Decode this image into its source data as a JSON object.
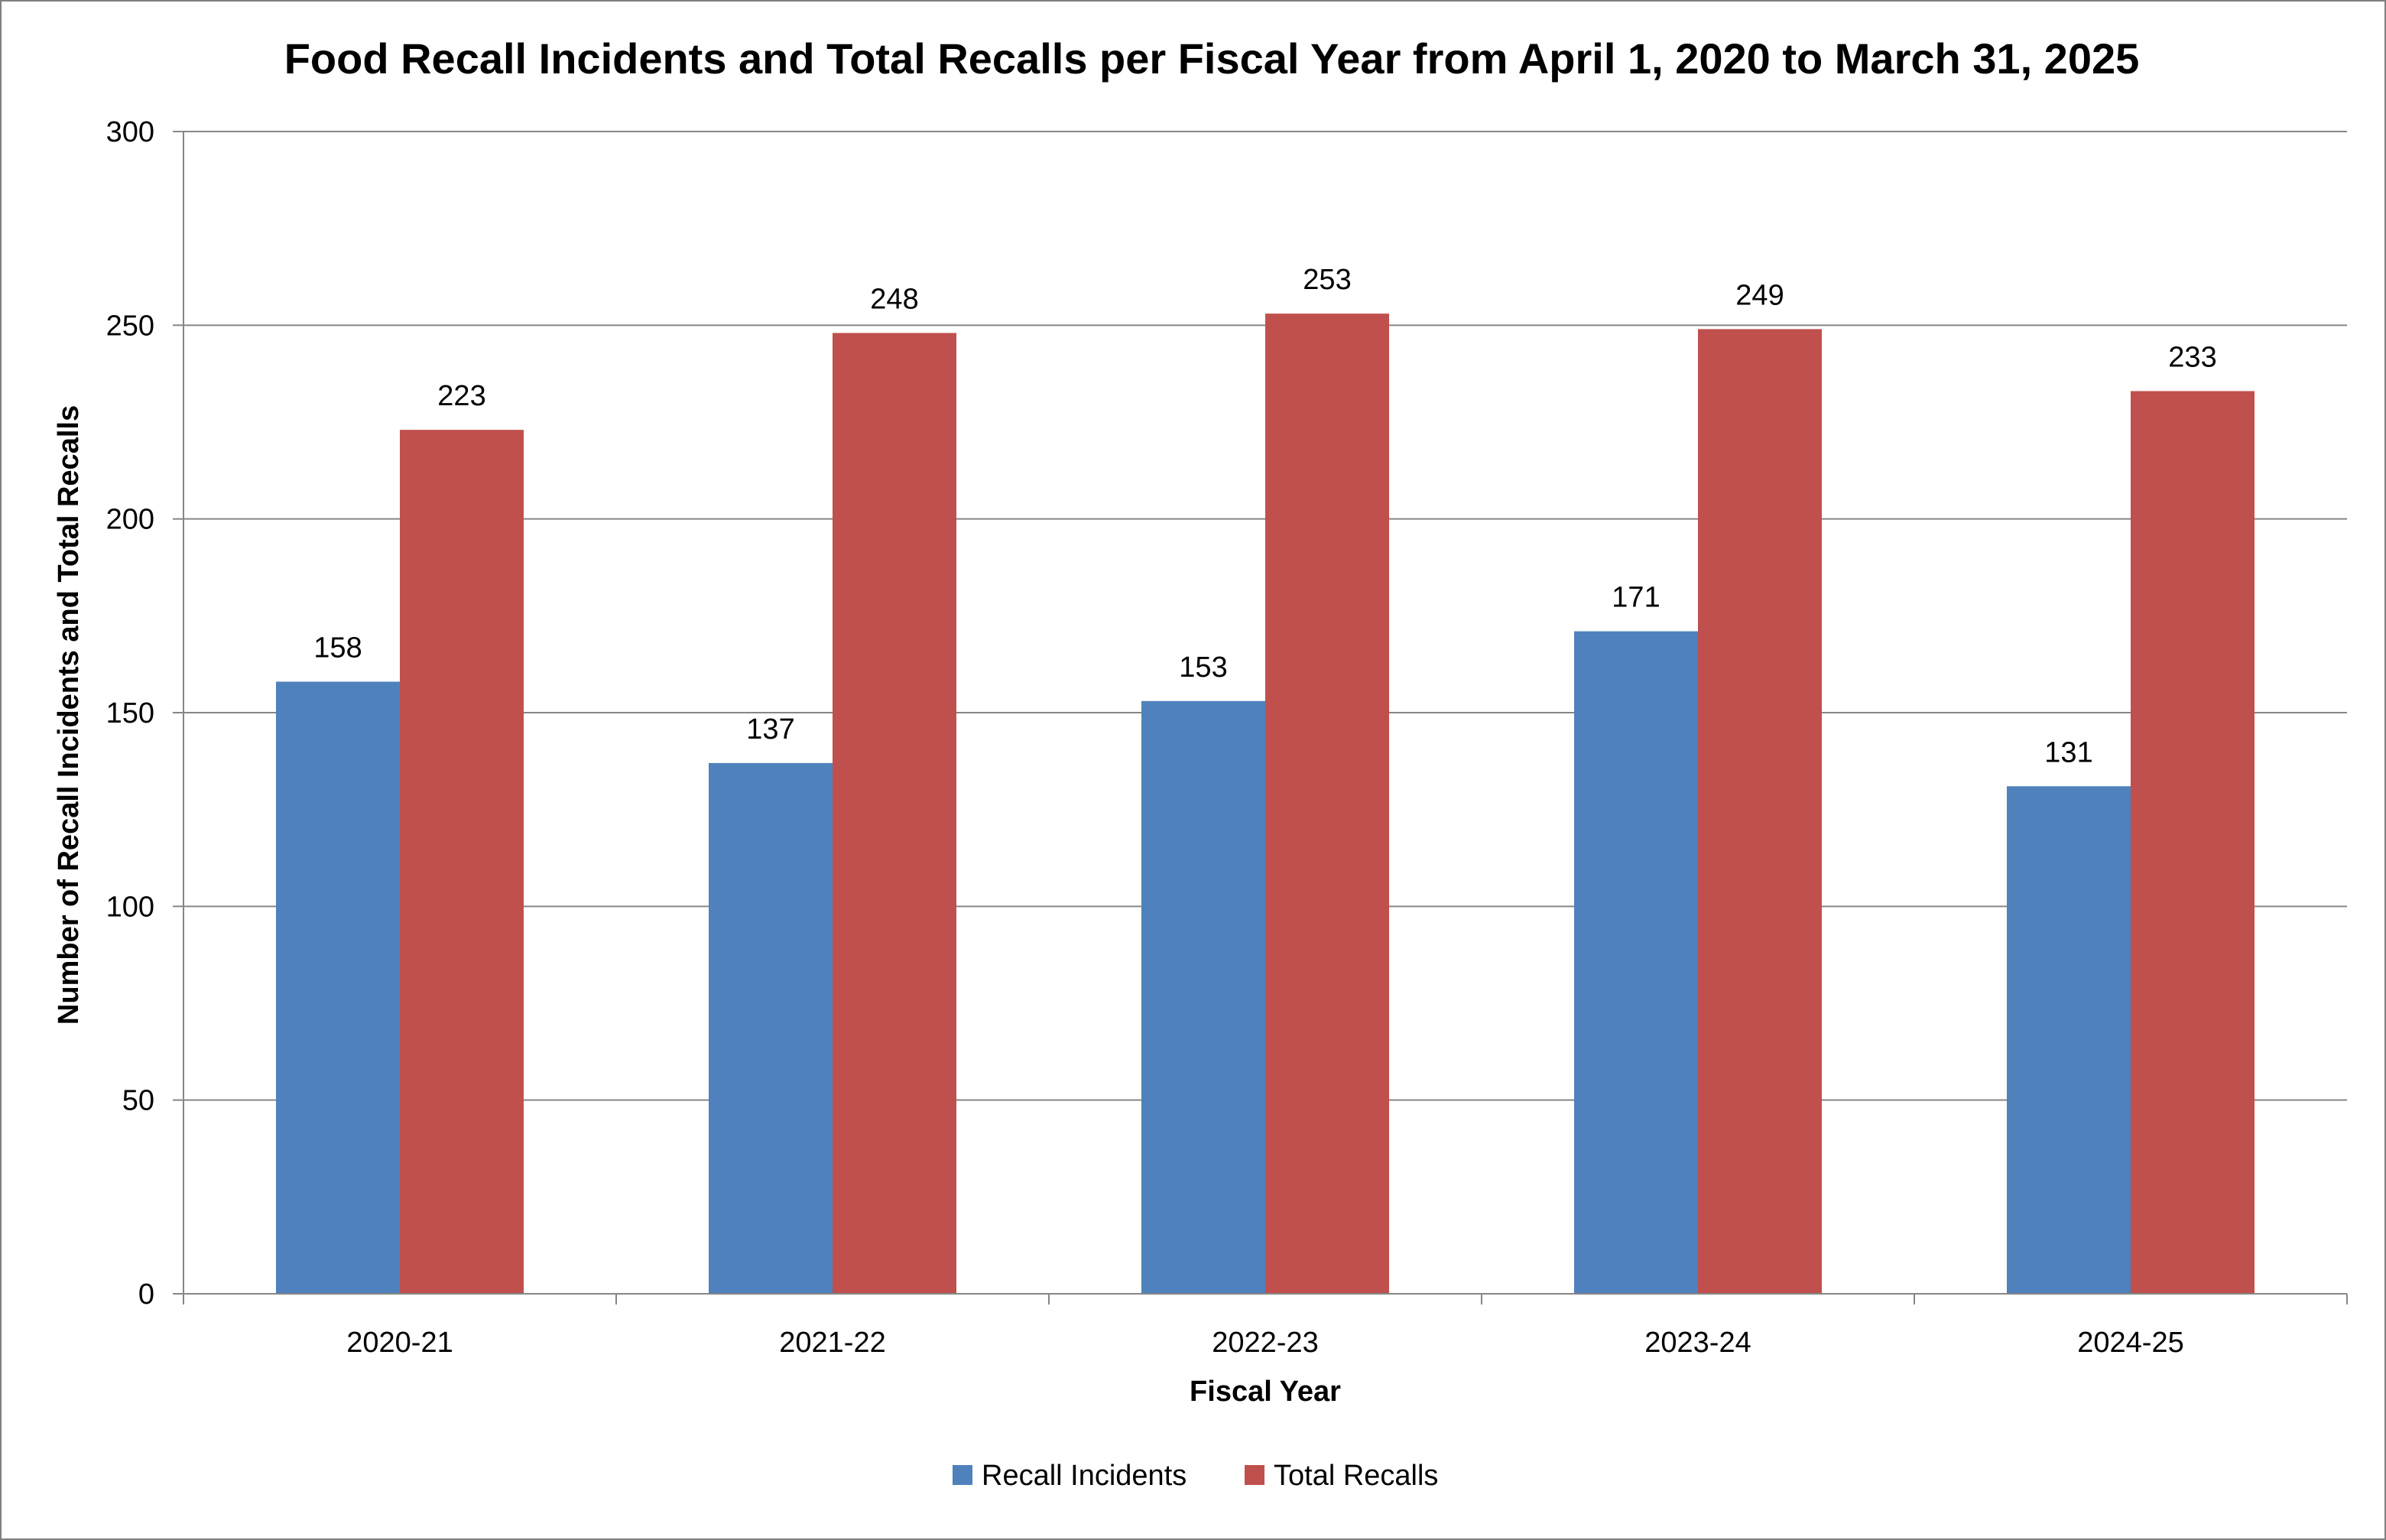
{
  "chart_data": {
    "type": "bar",
    "title": "Food Recall Incidents and Total Recalls per Fiscal Year from April 1, 2020 to March 31, 2025",
    "xlabel": "Fiscal Year",
    "ylabel": "Number of Recall Incidents and Total Recalls",
    "categories": [
      "2020-21",
      "2021-22",
      "2022-23",
      "2023-24",
      "2024-25"
    ],
    "series": [
      {
        "name": "Recall Incidents",
        "values": [
          158,
          137,
          153,
          171,
          131
        ],
        "color": "#4f81bd"
      },
      {
        "name": "Total Recalls",
        "values": [
          223,
          248,
          253,
          249,
          233
        ],
        "color": "#c0504d"
      }
    ],
    "ylim": [
      0,
      300
    ],
    "yticks": [
      0,
      50,
      100,
      150,
      200,
      250,
      300
    ],
    "grid": true,
    "legend": "bottom",
    "data_labels": true
  }
}
